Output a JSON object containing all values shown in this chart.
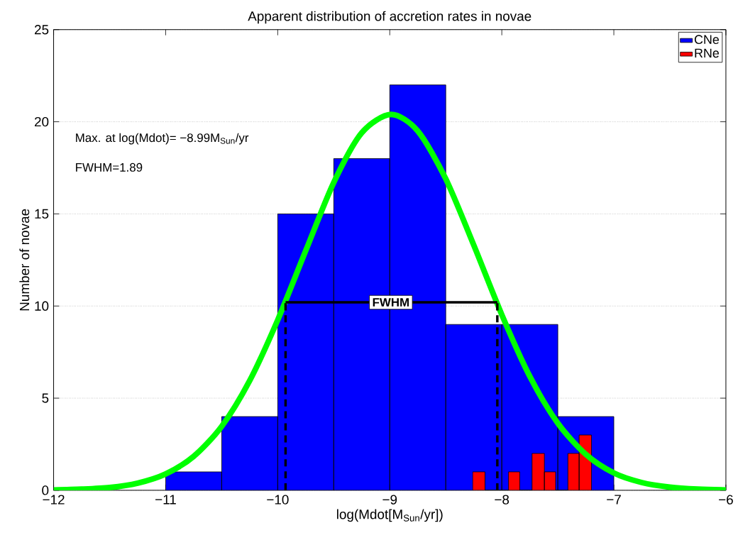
{
  "chart_data": {
    "type": "histogram",
    "title": "Apparent distribution of accretion rates in novae",
    "xlabel": "log(Mdot[M$_{Sun}$/yr])",
    "ylabel": "Number of novae",
    "xlim": [
      -12,
      -6
    ],
    "ylim": [
      0,
      25
    ],
    "xticks": [
      {
        "value": -12,
        "label": "−12"
      },
      {
        "value": -11,
        "label": "−11"
      },
      {
        "value": -10,
        "label": "−10"
      },
      {
        "value": -9,
        "label": "−9"
      },
      {
        "value": -8,
        "label": "−8"
      },
      {
        "value": -7,
        "label": "−7"
      },
      {
        "value": -6,
        "label": "−6"
      }
    ],
    "yticks": [
      0,
      5,
      10,
      15,
      20,
      25
    ],
    "grid": "y",
    "legend": "top right",
    "series": [
      {
        "name": "CNe",
        "color": "#0000ff",
        "bins": [
          -11,
          -10.5,
          -10,
          -9.5,
          -9,
          -8.5,
          -8,
          -7.5,
          -7
        ],
        "values": [
          1,
          4,
          15,
          18,
          22,
          9,
          9,
          4
        ]
      },
      {
        "name": "RNe",
        "color": "#ff0000",
        "bins": [
          -8.26,
          -8.15,
          -7.94,
          -7.84,
          -7.73,
          -7.62,
          -7.52,
          -7.41,
          -7.31,
          -7.2
        ],
        "values": [
          1,
          0,
          1,
          0,
          2,
          1,
          0,
          2,
          3
        ]
      },
      {
        "type": "line",
        "color": "#00ff00",
        "x": [
          -12,
          -11.75,
          -11.5,
          -11.25,
          -11,
          -10.75,
          -10.5,
          -10.25,
          -10,
          -9.75,
          -9.5,
          -9.25,
          -8.99,
          -8.75,
          -8.5,
          -8.25,
          -8,
          -7.75,
          -7.5,
          -7.25,
          -7,
          -6.75,
          -6.5,
          -6.25,
          -6
        ],
        "values": [
          0.02,
          0.06,
          0.15,
          0.39,
          0.89,
          1.84,
          3.47,
          5.95,
          9.24,
          13.0,
          16.7,
          19.4,
          20.4,
          19.5,
          16.9,
          13.3,
          9.53,
          6.18,
          3.64,
          1.95,
          0.94,
          0.42,
          0.17,
          0.06,
          0.02
        ]
      },
      {
        "type": "line",
        "color": "#000000",
        "line_style": "solid",
        "x": [
          -9.93,
          -8.04
        ],
        "values": [
          10.2,
          10.2
        ]
      },
      {
        "type": "line",
        "color": "#000000",
        "line_style": "dashed",
        "x": [
          -9.93,
          -9.93
        ],
        "values": [
          0,
          10.2
        ]
      },
      {
        "type": "line",
        "color": "#000000",
        "line_style": "dashed",
        "x": [
          -8.04,
          -8.04
        ],
        "values": [
          0,
          10.2
        ]
      }
    ],
    "annotations": [
      "Max. at log(Mdot)= −8.99M$_{Sun}$/yr",
      "FWHM=1.89",
      {
        "text": "FWHM",
        "x": -8.99,
        "y": 10.2
      }
    ]
  }
}
